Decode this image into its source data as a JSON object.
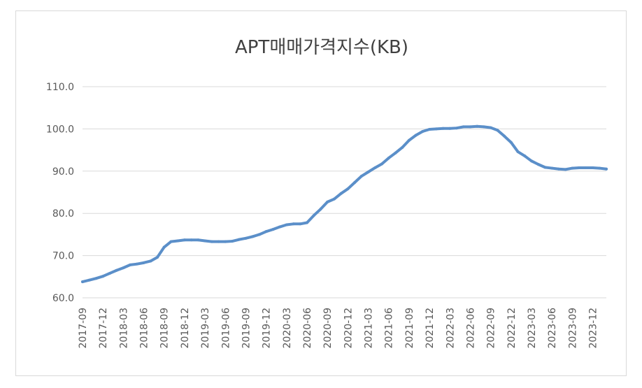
{
  "chart_data": {
    "type": "line",
    "title": "APT매매가격지수(KB)",
    "xlabel": "",
    "ylabel": "",
    "ylim": [
      60,
      110
    ],
    "y_ticks": [
      "60.0",
      "70.0",
      "80.0",
      "90.0",
      "100.0",
      "110.0"
    ],
    "x_tick_labels": [
      "2017-09",
      "2017-12",
      "2018-03",
      "2018-06",
      "2018-09",
      "2018-12",
      "2019-03",
      "2019-06",
      "2019-09",
      "2019-12",
      "2020-03",
      "2020-06",
      "2020-09",
      "2020-12",
      "2021-03",
      "2021-06",
      "2021-09",
      "2021-12",
      "2022-03",
      "2022-06",
      "2022-09",
      "2022-12",
      "2023-03",
      "2023-06",
      "2023-09",
      "2023-12"
    ],
    "grid": true,
    "legend": "none",
    "line_color": "#5b8fc9",
    "series": [
      {
        "x": [
          "2017-09",
          "2017-10",
          "2017-11",
          "2017-12",
          "2018-01",
          "2018-02",
          "2018-03",
          "2018-04",
          "2018-05",
          "2018-06",
          "2018-07",
          "2018-08",
          "2018-09",
          "2018-10",
          "2018-11",
          "2018-12",
          "2019-01",
          "2019-02",
          "2019-03",
          "2019-04",
          "2019-05",
          "2019-06",
          "2019-07",
          "2019-08",
          "2019-09",
          "2019-10",
          "2019-11",
          "2019-12",
          "2020-01",
          "2020-02",
          "2020-03",
          "2020-04",
          "2020-05",
          "2020-06",
          "2020-07",
          "2020-08",
          "2020-09",
          "2020-10",
          "2020-11",
          "2020-12",
          "2021-01",
          "2021-02",
          "2021-03",
          "2021-04",
          "2021-05",
          "2021-06",
          "2021-07",
          "2021-08",
          "2021-09",
          "2021-10",
          "2021-11",
          "2021-12",
          "2022-01",
          "2022-02",
          "2022-03",
          "2022-04",
          "2022-05",
          "2022-06",
          "2022-07",
          "2022-08",
          "2022-09",
          "2022-10",
          "2022-11",
          "2022-12",
          "2023-01",
          "2023-02",
          "2023-03",
          "2023-04",
          "2023-05",
          "2023-06",
          "2023-07",
          "2023-08",
          "2023-09",
          "2023-10",
          "2023-11",
          "2023-12",
          "2024-01",
          "2024-02"
        ],
        "values": [
          63.8,
          64.2,
          64.6,
          65.1,
          65.8,
          66.5,
          67.1,
          67.8,
          68.0,
          68.3,
          68.7,
          69.6,
          72.0,
          73.3,
          73.5,
          73.7,
          73.7,
          73.7,
          73.5,
          73.3,
          73.3,
          73.3,
          73.4,
          73.8,
          74.1,
          74.5,
          75.0,
          75.7,
          76.2,
          76.8,
          77.3,
          77.5,
          77.5,
          77.8,
          79.5,
          81.0,
          82.7,
          83.4,
          84.7,
          85.8,
          87.3,
          88.8,
          89.8,
          90.8,
          91.7,
          93.1,
          94.3,
          95.6,
          97.3,
          98.5,
          99.4,
          99.9,
          100.0,
          100.1,
          100.1,
          100.2,
          100.5,
          100.5,
          100.6,
          100.5,
          100.3,
          99.7,
          98.3,
          96.8,
          94.6,
          93.6,
          92.4,
          91.6,
          90.9,
          90.7,
          90.5,
          90.4,
          90.7,
          90.8,
          90.8,
          90.8,
          90.7,
          90.5
        ]
      }
    ]
  }
}
